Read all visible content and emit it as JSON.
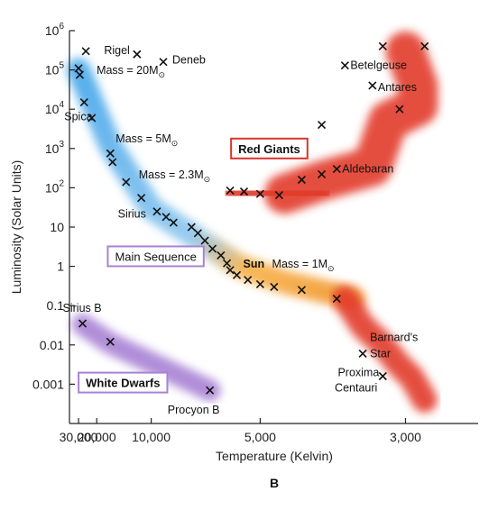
{
  "chart_data": {
    "type": "scatter",
    "title": "",
    "xlabel": "Temperature (Kelvin)",
    "ylabel": "Luminosity (Solar Units)",
    "x_scale": "reciprocal",
    "y_scale": "log",
    "xlim": [
      40000,
      2500
    ],
    "ylim": [
      0.0001,
      1000000
    ],
    "x_ticks": [
      {
        "value": 30000,
        "label": "30,000"
      },
      {
        "value": 20000,
        "label": "20,000"
      },
      {
        "value": 10000,
        "label": "10,000"
      },
      {
        "value": 5000,
        "label": "5,000"
      },
      {
        "value": 3000,
        "label": "3,000"
      }
    ],
    "y_ticks": [
      {
        "value": 0.001,
        "label": "0.001"
      },
      {
        "value": 0.01,
        "label": "0.01"
      },
      {
        "value": 0.1,
        "label": "0.1"
      },
      {
        "value": 1,
        "label": "1"
      },
      {
        "value": 10,
        "label": "10"
      },
      {
        "value": 100,
        "base": "10",
        "exp": "2"
      },
      {
        "value": 1000,
        "base": "10",
        "exp": "3"
      },
      {
        "value": 10000,
        "base": "10",
        "exp": "4"
      },
      {
        "value": 100000,
        "base": "10",
        "exp": "5"
      },
      {
        "value": 1000000,
        "base": "10",
        "exp": "6"
      }
    ],
    "regions": [
      {
        "name": "Main Sequence",
        "color": "#4aa8ea",
        "color_end": "#f29a2e",
        "path": [
          [
            30000,
            100000
          ],
          [
            16000,
            1200
          ],
          [
            10000,
            30
          ],
          [
            7000,
            5
          ],
          [
            5500,
            1
          ],
          [
            4500,
            0.4
          ],
          [
            3500,
            0.15
          ]
        ]
      },
      {
        "name": "Red Giants",
        "color": "#e23a2a",
        "path": [
          [
            4500,
            70
          ],
          [
            3900,
            150
          ],
          [
            3300,
            350
          ],
          [
            3150,
            5000
          ],
          [
            2900,
            12000
          ],
          [
            2900,
            40000
          ],
          [
            3000,
            300000
          ]
        ]
      },
      {
        "name": "Red Giants tail",
        "color": "#e23a2a",
        "path": [
          [
            3600,
            0.15
          ],
          [
            3400,
            0.03
          ],
          [
            3200,
            0.01
          ],
          [
            3050,
            0.003
          ],
          [
            2950,
            0.0015
          ],
          [
            2850,
            0.0004
          ]
        ]
      },
      {
        "name": "Red Giants top",
        "color": "#e23a2a",
        "path": [
          [
            3900,
            300000
          ],
          [
            3600,
            300000
          ],
          [
            3200,
            300000
          ],
          [
            2800,
            300000
          ]
        ]
      },
      {
        "name": "Red Giants base",
        "color": "#e23a2a",
        "path": [
          [
            5500,
            80
          ],
          [
            5000,
            70
          ],
          [
            4500,
            65
          ],
          [
            4000,
            80
          ]
        ]
      },
      {
        "name": "White Dwarfs",
        "color": "#a882d4",
        "path": [
          [
            27000,
            0.033
          ],
          [
            16000,
            0.011
          ],
          [
            6500,
            0.0007
          ]
        ]
      }
    ],
    "series": [
      {
        "name": "Main Sequence",
        "points": [
          {
            "x": 30000,
            "y": 110000
          },
          {
            "x": 29000,
            "y": 75000
          },
          {
            "x": 26000,
            "y": 15000
          },
          {
            "x": 22000,
            "y": 6000
          },
          {
            "x": 16000,
            "y": 750
          },
          {
            "x": 15500,
            "y": 450
          },
          {
            "x": 13000,
            "y": 140
          },
          {
            "x": 11000,
            "y": 55
          },
          {
            "x": 9500,
            "y": 25
          },
          {
            "x": 8800,
            "y": 18
          },
          {
            "x": 8300,
            "y": 13
          },
          {
            "x": 7300,
            "y": 10
          },
          {
            "x": 7000,
            "y": 7
          },
          {
            "x": 6700,
            "y": 4.5
          },
          {
            "x": 6400,
            "y": 2.8
          },
          {
            "x": 6100,
            "y": 1.9
          },
          {
            "x": 5900,
            "y": 1.2
          },
          {
            "x": 5800,
            "y": 0.8
          },
          {
            "x": 5600,
            "y": 0.6
          },
          {
            "x": 5300,
            "y": 0.45
          },
          {
            "x": 5000,
            "y": 0.35
          },
          {
            "x": 4700,
            "y": 0.3
          },
          {
            "x": 4200,
            "y": 0.25
          },
          {
            "x": 3700,
            "y": 0.15
          }
        ]
      },
      {
        "name": "Red Giants",
        "points": [
          {
            "x": 3200,
            "y": 400000
          },
          {
            "x": 2850,
            "y": 400000
          },
          {
            "x": 3600,
            "y": 130000
          },
          {
            "x": 3300,
            "y": 40000
          },
          {
            "x": 3050,
            "y": 10000
          },
          {
            "x": 3900,
            "y": 4000
          },
          {
            "x": 3700,
            "y": 300
          },
          {
            "x": 3900,
            "y": 220
          },
          {
            "x": 4200,
            "y": 160
          },
          {
            "x": 4600,
            "y": 65
          },
          {
            "x": 5000,
            "y": 70
          },
          {
            "x": 5400,
            "y": 80
          },
          {
            "x": 5800,
            "y": 85
          }
        ]
      },
      {
        "name": "Other stars",
        "points": [
          {
            "x": 25000,
            "y": 300000
          },
          {
            "x": 11500,
            "y": 250000
          },
          {
            "x": 9000,
            "y": 160000
          },
          {
            "x": 3400,
            "y": 0.006
          },
          {
            "x": 3200,
            "y": 0.0016
          }
        ]
      },
      {
        "name": "White Dwarfs",
        "points": [
          {
            "x": 27000,
            "y": 0.035
          },
          {
            "x": 16000,
            "y": 0.012
          },
          {
            "x": 6500,
            "y": 0.0007
          }
        ]
      }
    ],
    "annotations": [
      {
        "text": "Rigel",
        "x": 11500,
        "y": 250000,
        "anchor": "end",
        "dx": -8,
        "dy": 0
      },
      {
        "text": "Deneb",
        "x": 9000,
        "y": 160000,
        "anchor": "start",
        "dx": 10,
        "dy": 2
      },
      {
        "text": "Mass = 20M",
        "sub": "⊙",
        "x": 30000,
        "y": 110000,
        "anchor": "start",
        "dx": 20,
        "dy": 6
      },
      {
        "text": "Spica",
        "x": 26000,
        "y": 15000,
        "anchor": "start",
        "dx": -22,
        "dy": 20
      },
      {
        "text": "Mass = 5M",
        "sub": "⊙",
        "x": 16000,
        "y": 750,
        "anchor": "start",
        "dx": 6,
        "dy": -12
      },
      {
        "text": "Mass = 2.3M",
        "sub": "⊙",
        "x": 13000,
        "y": 140,
        "anchor": "start",
        "dx": 14,
        "dy": -4
      },
      {
        "text": "Sirius",
        "x": 11000,
        "y": 55,
        "anchor": "start",
        "dx": -26,
        "dy": 22
      },
      {
        "text": "Aldebaran",
        "x": 3700,
        "y": 300,
        "anchor": "start",
        "dx": 6,
        "dy": 4
      },
      {
        "text": "Betelgeuse",
        "x": 3600,
        "y": 130000,
        "anchor": "start",
        "dx": 6,
        "dy": 4
      },
      {
        "text": "Antares",
        "x": 3300,
        "y": 40000,
        "anchor": "start",
        "dx": 6,
        "dy": 6
      },
      {
        "text": "Mass = 1M",
        "sub": "⊙",
        "x": 5900,
        "y": 1.2,
        "anchor": "start",
        "dx": 50,
        "dy": 5
      },
      {
        "text": "Sun",
        "x": 5900,
        "y": 1.2,
        "anchor": "start",
        "dx": 18,
        "dy": 5,
        "bold": true
      },
      {
        "text": "Sirius B",
        "x": 27000,
        "y": 0.035,
        "anchor": "start",
        "dx": -22,
        "dy": -13
      },
      {
        "text": "Barnard's",
        "x": 3400,
        "y": 0.006,
        "anchor": "start",
        "dx": 8,
        "dy": -14
      },
      {
        "text": "Star",
        "x": 3400,
        "y": 0.006,
        "anchor": "start",
        "dx": 8,
        "dy": 4
      },
      {
        "text": "Proxima",
        "x": 3200,
        "y": 0.0016,
        "anchor": "end",
        "dx": -4,
        "dy": 0
      },
      {
        "text": "Centauri",
        "x": 3200,
        "y": 0.0016,
        "anchor": "end",
        "dx": -6,
        "dy": 17
      },
      {
        "text": "Procyon B",
        "x": 6500,
        "y": 0.0007,
        "anchor": "middle",
        "dx": -18,
        "dy": 26
      }
    ],
    "boxed_labels": [
      {
        "text": "Red Giants",
        "x": 4800,
        "y": 1000,
        "color": "#d9342b",
        "bold": true,
        "font": "Liberation Sans"
      },
      {
        "text": "Main Sequence",
        "x": 9600,
        "y": 1.8,
        "color": "#a882d4",
        "bold": false,
        "font": "Liberation Mono"
      },
      {
        "text": "White Dwarfs",
        "x": 13500,
        "y": 0.0011,
        "color": "#a882d4",
        "bold": true,
        "font": "Liberation Sans"
      }
    ],
    "figure_label": "B",
    "grid": false,
    "legend": "none"
  }
}
